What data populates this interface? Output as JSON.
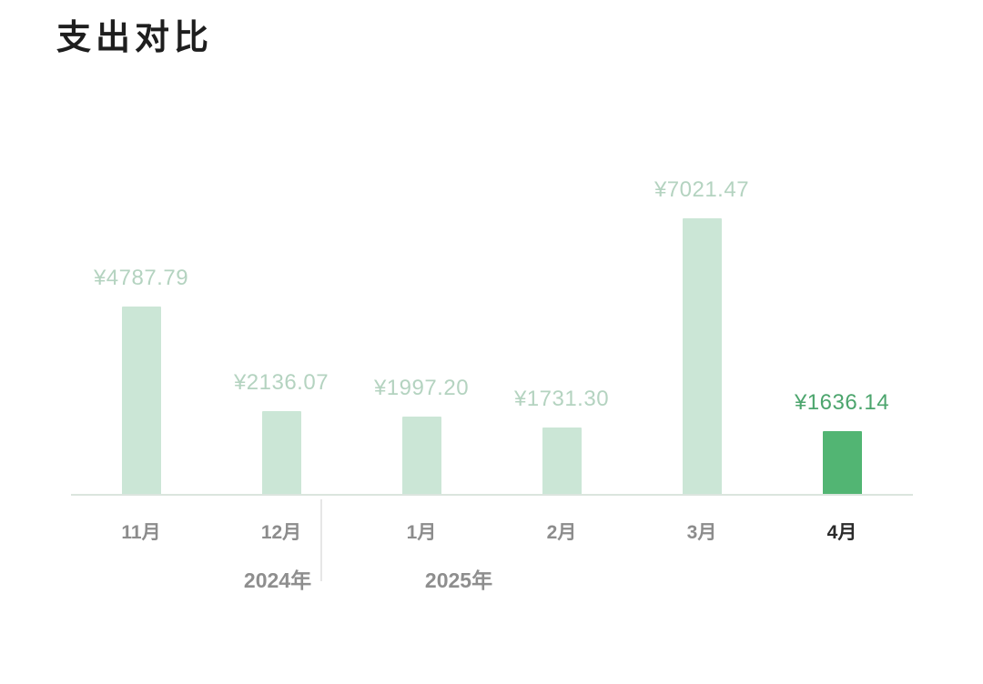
{
  "title": "支出对比",
  "colors": {
    "bar_light": "#cbe6d6",
    "bar_highlight": "#52b573",
    "label_light": "#b4d3c0",
    "label_highlight": "#4ca56d",
    "month_label": "#8c8c8c",
    "month_label_highlight": "#2b2b2b",
    "year_label": "#8e8e8e",
    "axis_line": "#dbe5de",
    "separator": "#e6e6e6"
  },
  "chart_data": {
    "type": "bar",
    "title": "支出对比",
    "categories": [
      "11月",
      "12月",
      "1月",
      "2月",
      "3月",
      "4月"
    ],
    "values": [
      4787.79,
      2136.07,
      1997.2,
      1731.3,
      7021.47,
      1636.14
    ],
    "value_labels": [
      "¥4787.79",
      "¥2136.07",
      "¥1997.20",
      "¥1731.30",
      "¥7021.47",
      "¥1636.14"
    ],
    "currency_symbol": "¥",
    "highlight_index": 5,
    "highlight_category": "4月",
    "year_groups": [
      {
        "label": "2024年",
        "categories": [
          "11月",
          "12月"
        ]
      },
      {
        "label": "2025年",
        "categories": [
          "1月",
          "2月",
          "3月",
          "4月"
        ]
      }
    ],
    "xlabel": "",
    "ylabel": "",
    "ylim": [
      0,
      7021.47
    ],
    "grid": false,
    "legend": false,
    "bar_color": "#cbe6d6",
    "highlight_bar_color": "#52b573"
  }
}
